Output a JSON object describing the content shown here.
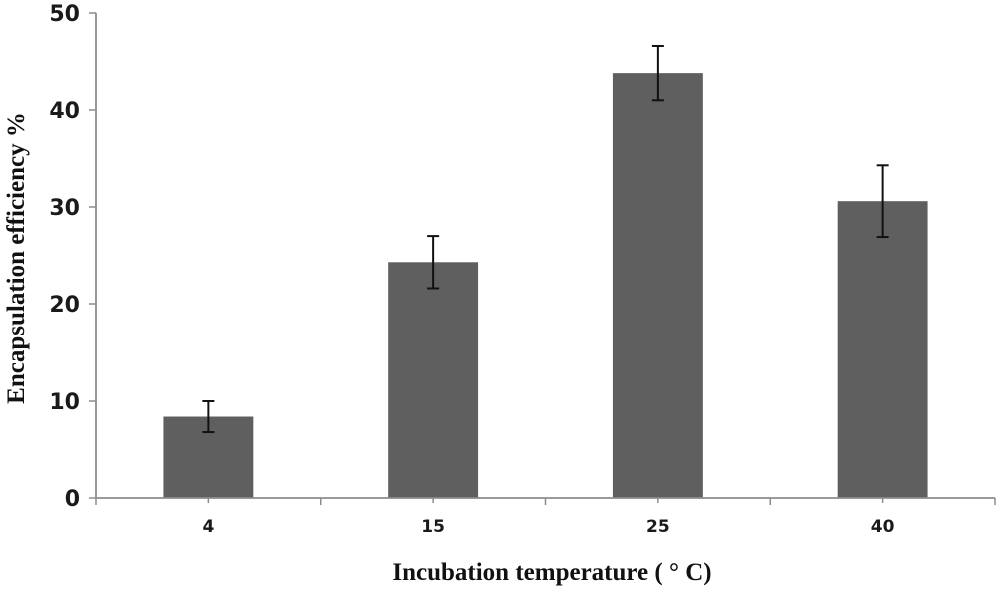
{
  "chart_data": {
    "type": "bar",
    "categories": [
      "4",
      "15",
      "25",
      "40"
    ],
    "values": [
      8.4,
      24.3,
      43.8,
      30.6
    ],
    "errors": [
      1.6,
      2.7,
      2.8,
      3.7
    ],
    "title": "",
    "xlabel": "Incubation temperature ( ° C)",
    "ylabel": "Encapsulation efficiency %",
    "ylim": [
      0,
      50
    ],
    "yticks": [
      0,
      10,
      20,
      30,
      40,
      50
    ],
    "grid": false,
    "bar_color": "#5f5f5f",
    "axis_color": "#8c8c8c"
  }
}
